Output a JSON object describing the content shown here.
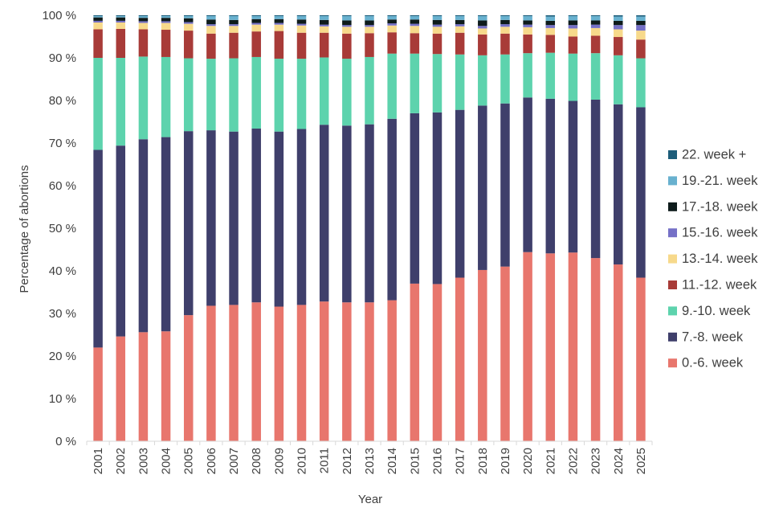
{
  "chart_data": {
    "type": "bar",
    "stacked": true,
    "title": "",
    "xlabel": "Year",
    "ylabel": "Percentage of abortions",
    "ylim": [
      0,
      100
    ],
    "y_ticks": [
      0,
      10,
      20,
      30,
      40,
      50,
      60,
      70,
      80,
      90,
      100
    ],
    "y_tick_suffix": " %",
    "grid": false,
    "legend_position": "right",
    "categories": [
      "2001",
      "2002",
      "2003",
      "2004",
      "2005",
      "2006",
      "2007",
      "2008",
      "2009",
      "2010",
      "2011",
      "2012",
      "2013",
      "2014",
      "2015",
      "2016",
      "2017",
      "2018",
      "2019",
      "2020",
      "2021",
      "2022",
      "2023",
      "2024",
      "2025"
    ],
    "series": [
      {
        "name": "0.-6. week",
        "color": "#E8766D",
        "values": [
          22.0,
          24.6,
          25.6,
          25.8,
          29.6,
          31.8,
          32.0,
          32.6,
          31.6,
          32.0,
          32.8,
          32.6,
          32.6,
          33.1,
          37.0,
          36.9,
          38.4,
          40.2,
          41.0,
          44.4,
          44.1,
          44.3,
          43.0,
          41.5,
          38.4
        ]
      },
      {
        "name": "7.-8. week",
        "color": "#3F3F6B",
        "values": [
          46.4,
          44.8,
          45.3,
          45.6,
          43.2,
          41.2,
          40.7,
          40.8,
          41.1,
          41.3,
          41.5,
          41.5,
          41.8,
          42.6,
          40.0,
          40.3,
          39.4,
          38.6,
          38.3,
          36.3,
          36.3,
          35.6,
          37.2,
          37.6,
          40.0
        ]
      },
      {
        "name": "9.-10. week",
        "color": "#5DD3AD",
        "values": [
          21.6,
          20.6,
          19.4,
          18.8,
          17.1,
          16.8,
          17.2,
          16.8,
          17.1,
          16.5,
          15.8,
          15.7,
          15.8,
          15.3,
          14.0,
          13.7,
          13.0,
          11.8,
          11.5,
          10.4,
          10.8,
          11.1,
          10.9,
          11.5,
          11.5
        ]
      },
      {
        "name": "11.-12. week",
        "color": "#A83B38",
        "values": [
          6.7,
          6.8,
          6.4,
          6.4,
          6.5,
          5.9,
          6.0,
          6.0,
          6.5,
          6.1,
          5.8,
          5.9,
          5.6,
          5.0,
          4.8,
          4.8,
          5.1,
          4.9,
          4.9,
          4.4,
          4.2,
          4.0,
          4.1,
          4.3,
          4.4
        ]
      },
      {
        "name": "13.-14. week",
        "color": "#F7D98B",
        "values": [
          1.6,
          1.5,
          1.5,
          1.6,
          1.6,
          1.8,
          1.6,
          1.6,
          1.5,
          1.7,
          1.5,
          1.6,
          1.5,
          1.6,
          1.7,
          1.6,
          1.5,
          1.4,
          1.6,
          1.7,
          1.6,
          1.9,
          1.8,
          1.8,
          2.1
        ]
      },
      {
        "name": "15.-16. week",
        "color": "#7570C7",
        "values": [
          0.4,
          0.4,
          0.4,
          0.4,
          0.4,
          0.4,
          0.4,
          0.4,
          0.4,
          0.4,
          0.4,
          0.4,
          0.4,
          0.5,
          0.5,
          0.5,
          0.5,
          0.6,
          0.6,
          0.6,
          0.7,
          0.8,
          0.8,
          1.0,
          1.3
        ]
      },
      {
        "name": "17.-18. week",
        "color": "#0E1B1B",
        "values": [
          0.8,
          0.8,
          0.8,
          0.8,
          0.9,
          1.1,
          1.0,
          0.9,
          0.9,
          1.0,
          1.1,
          1.1,
          1.1,
          0.9,
          1.0,
          1.1,
          1.0,
          1.3,
          1.0,
          1.0,
          1.0,
          1.1,
          1.0,
          1.0,
          1.0
        ]
      },
      {
        "name": "19.-21. week",
        "color": "#68B1CF",
        "values": [
          0.3,
          0.3,
          0.4,
          0.4,
          0.5,
          0.8,
          0.9,
          0.7,
          0.7,
          0.8,
          0.9,
          1.0,
          1.0,
          0.8,
          0.8,
          0.9,
          0.9,
          1.0,
          0.9,
          1.0,
          1.0,
          1.0,
          1.0,
          1.0,
          1.0
        ]
      },
      {
        "name": "22. week +",
        "color": "#1D5D7A",
        "values": [
          0.2,
          0.2,
          0.2,
          0.2,
          0.2,
          0.2,
          0.2,
          0.2,
          0.2,
          0.2,
          0.2,
          0.2,
          0.2,
          0.2,
          0.2,
          0.2,
          0.2,
          0.2,
          0.2,
          0.2,
          0.3,
          0.2,
          0.2,
          0.3,
          0.3
        ]
      }
    ]
  }
}
